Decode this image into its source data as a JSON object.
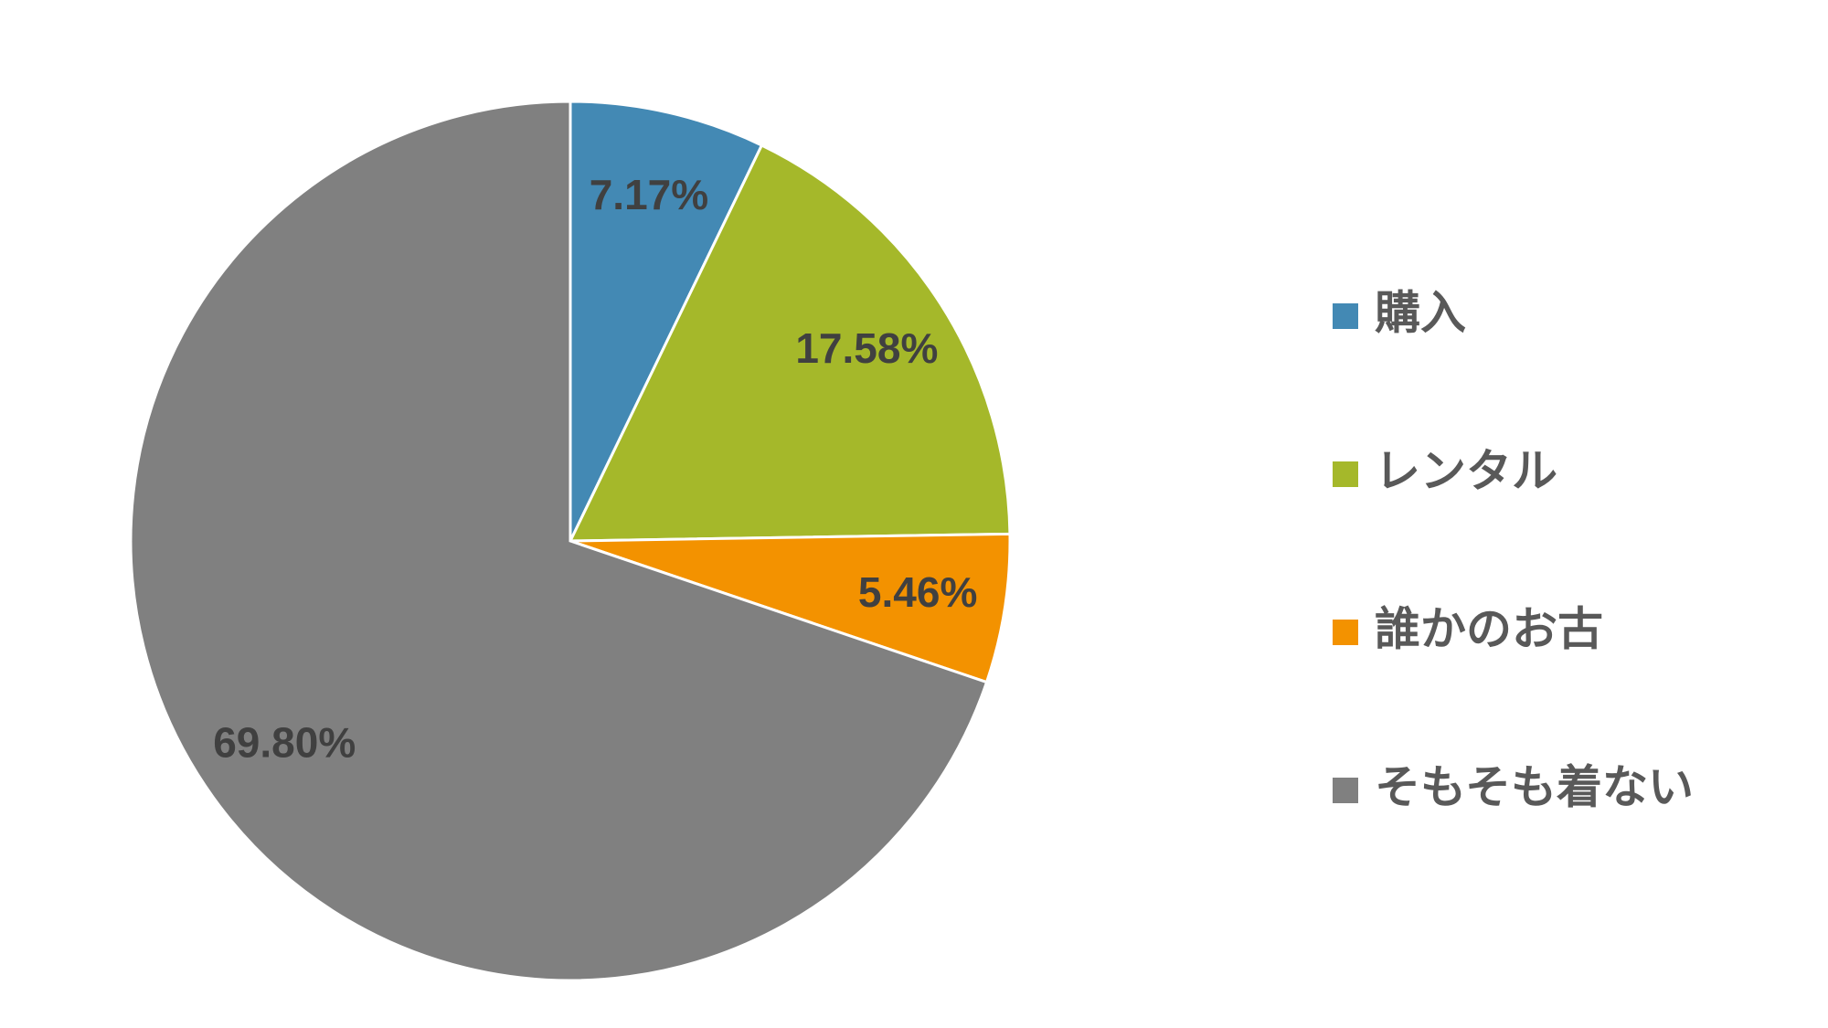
{
  "chart_data": {
    "type": "pie",
    "categories": [
      "購入",
      "レンタル",
      "誰かのお古",
      "そもそも着ない"
    ],
    "values": [
      7.17,
      17.58,
      5.46,
      69.8
    ],
    "value_labels": [
      "7.17%",
      "17.58%",
      "5.46%",
      "69.80%"
    ],
    "colors": [
      "#4389b4",
      "#a5b82a",
      "#f39200",
      "#808080"
    ],
    "legend": "right"
  }
}
